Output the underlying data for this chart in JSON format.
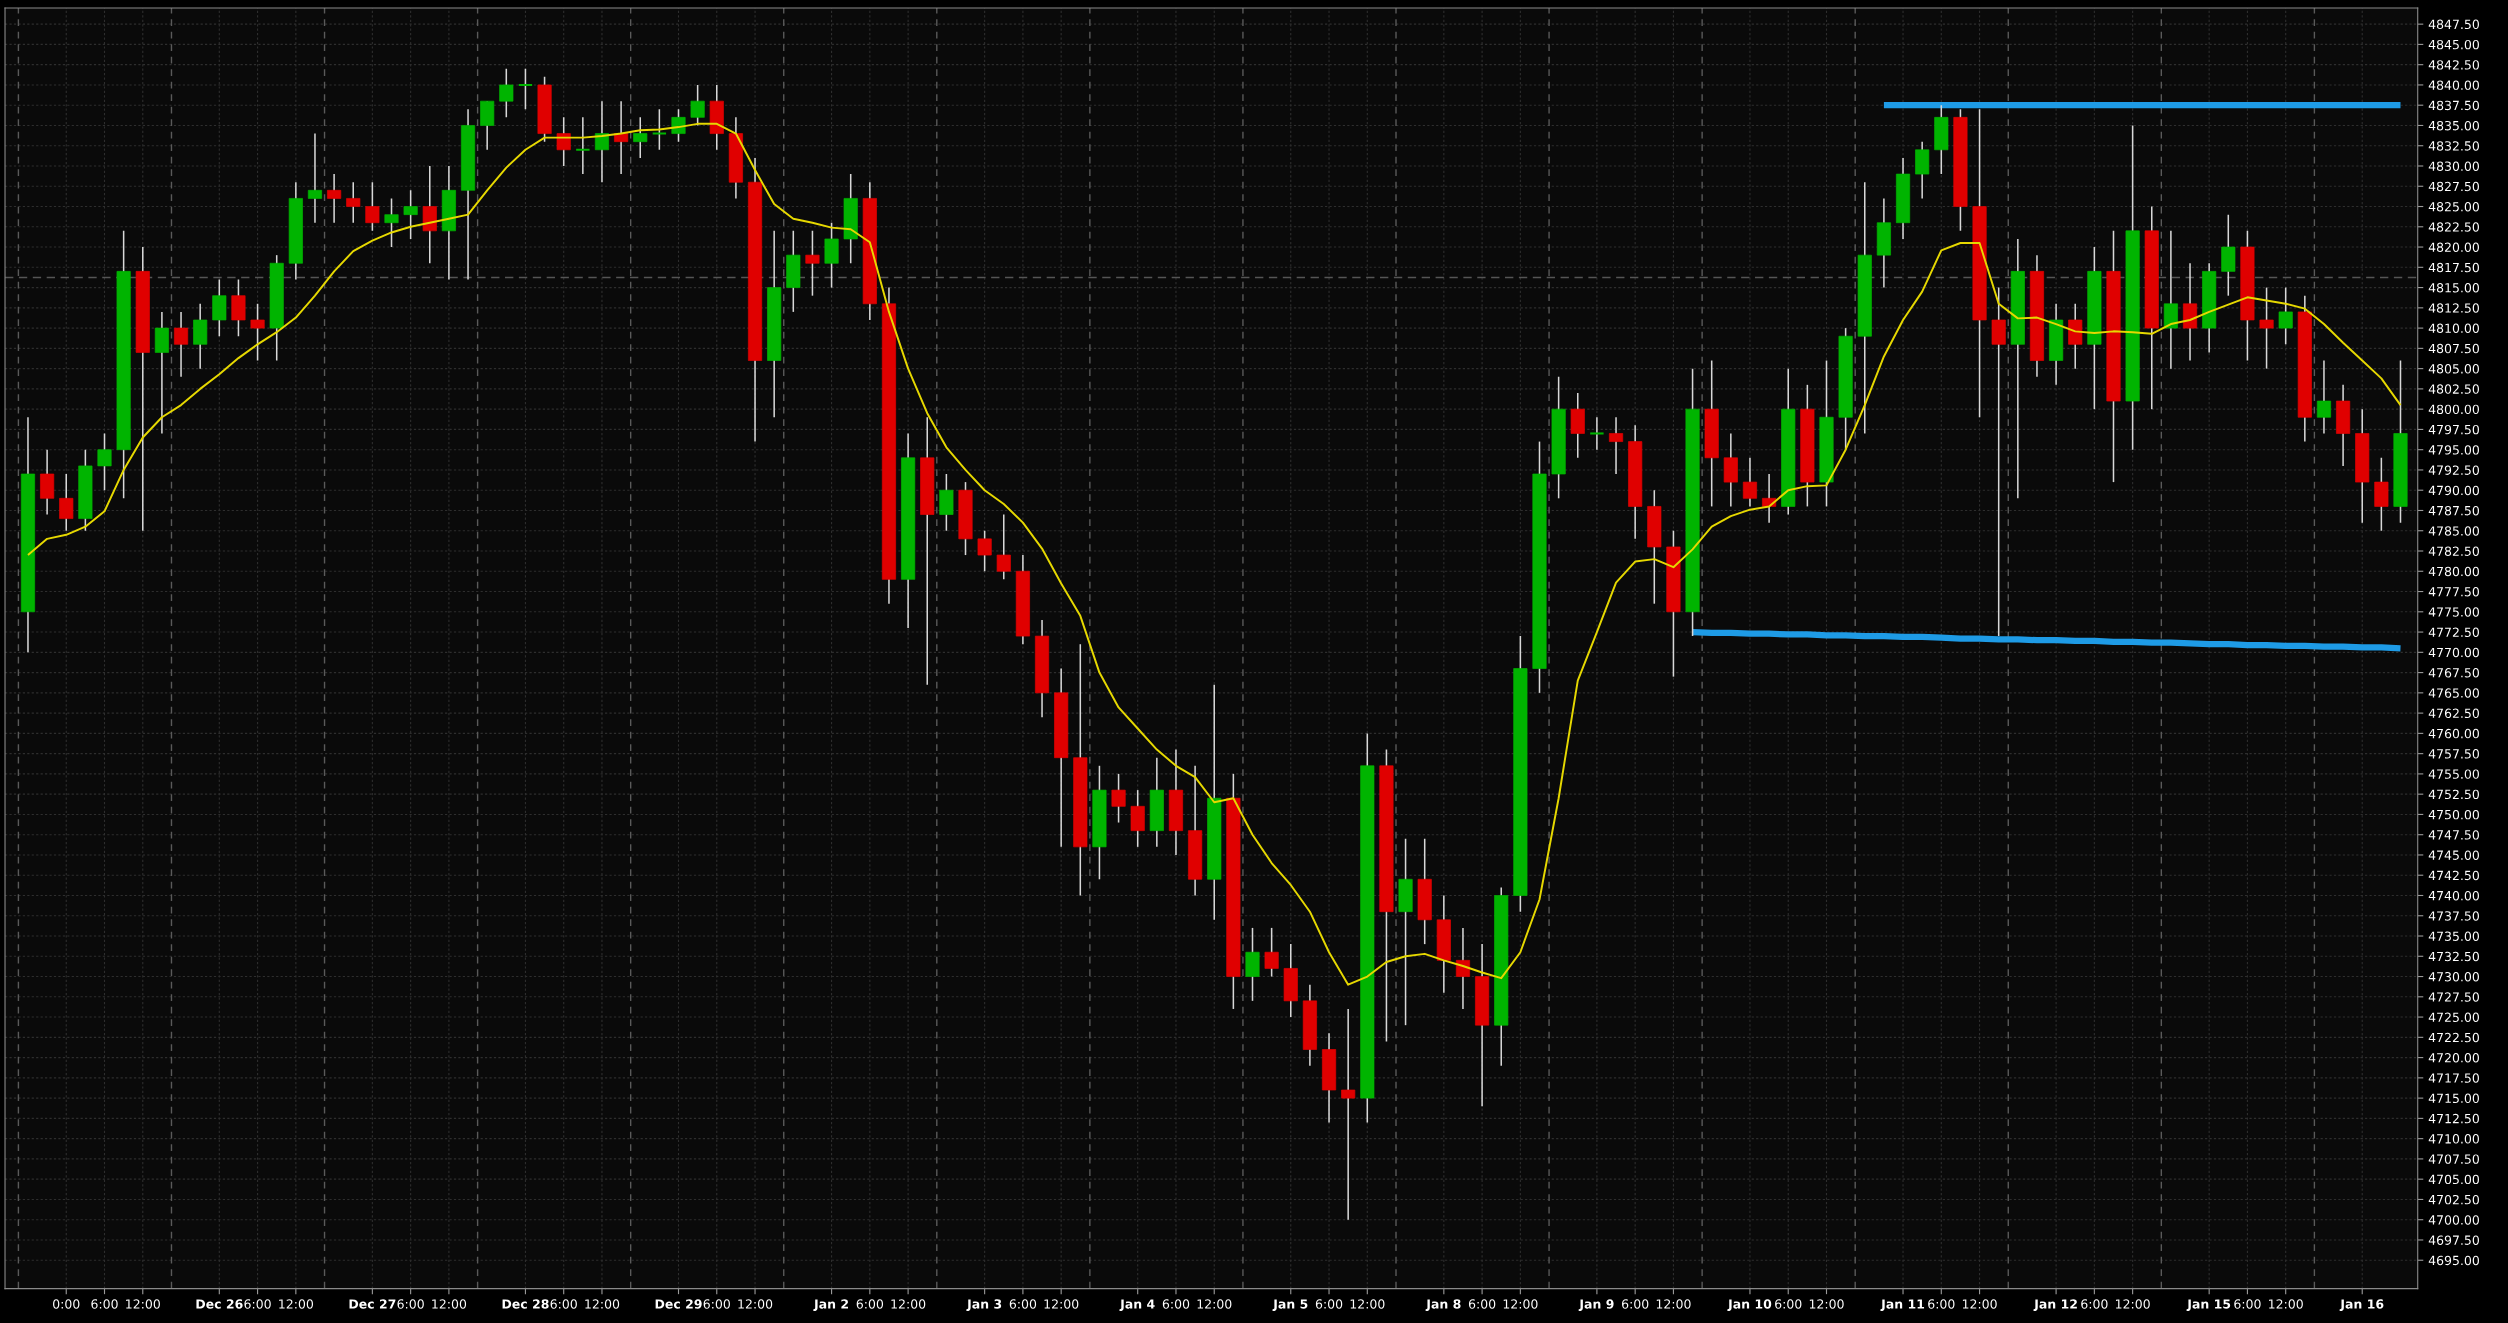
{
  "chart_data": {
    "type": "candlestick",
    "categories": [
      null,
      null,
      "0:00",
      null,
      "6:00",
      null,
      "12:00",
      null,
      null,
      null,
      "Dec 26",
      null,
      "6:00",
      null,
      "12:00",
      null,
      null,
      null,
      "Dec 27",
      null,
      "6:00",
      null,
      "12:00",
      null,
      null,
      null,
      "Dec 28",
      null,
      "6:00",
      null,
      "12:00",
      null,
      null,
      null,
      "Dec 29",
      null,
      "6:00",
      null,
      "12:00",
      null,
      null,
      null,
      "Jan 2",
      null,
      "6:00",
      null,
      "12:00",
      null,
      null,
      null,
      "Jan 3",
      null,
      "6:00",
      null,
      "12:00",
      null,
      null,
      null,
      "Jan 4",
      null,
      "6:00",
      null,
      "12:00",
      null,
      null,
      null,
      "Jan 5",
      null,
      "6:00",
      null,
      "12:00",
      null,
      null,
      null,
      "Jan 8",
      null,
      "6:00",
      null,
      "12:00",
      null,
      null,
      null,
      "Jan 9",
      null,
      "6:00",
      null,
      "12:00",
      null,
      null,
      null,
      "Jan 10",
      null,
      "6:00",
      null,
      "12:00",
      null,
      null,
      null,
      "Jan 11",
      null,
      "6:00",
      null,
      "12:00",
      null,
      null,
      null,
      "Jan 12",
      null,
      "6:00",
      null,
      "12:00",
      null,
      null,
      null,
      "Jan 15",
      null,
      "6:00",
      null,
      "12:00",
      null,
      null,
      null,
      "Jan 16",
      null,
      null
    ],
    "ohlc": [
      [
        4775,
        4799,
        4770,
        4792
      ],
      [
        4792,
        4795,
        4787,
        4789
      ],
      [
        4789,
        4792,
        4785,
        4786.5
      ],
      [
        4786.5,
        4795,
        4785,
        4793
      ],
      [
        4793,
        4797,
        4790,
        4795
      ],
      [
        4795,
        4822,
        4789,
        4817
      ],
      [
        4817,
        4820,
        4785,
        4807
      ],
      [
        4807,
        4812,
        4797,
        4810
      ],
      [
        4810,
        4812,
        4804,
        4808
      ],
      [
        4808,
        4813,
        4805,
        4811
      ],
      [
        4811,
        4816,
        4809,
        4814
      ],
      [
        4814,
        4816,
        4809,
        4811
      ],
      [
        4811,
        4813,
        4806,
        4810
      ],
      [
        4810,
        4819,
        4806,
        4818
      ],
      [
        4818,
        4828,
        4816,
        4826
      ],
      [
        4826,
        4834,
        4823,
        4827
      ],
      [
        4827,
        4829,
        4823,
        4826
      ],
      [
        4826,
        4828,
        4823,
        4825
      ],
      [
        4825,
        4828,
        4822,
        4823
      ],
      [
        4823,
        4826,
        4820,
        4824
      ],
      [
        4824,
        4827,
        4821,
        4825
      ],
      [
        4825,
        4830,
        4818,
        4822
      ],
      [
        4822,
        4830,
        4816,
        4827
      ],
      [
        4827,
        4837,
        4816,
        4835
      ],
      [
        4835,
        4838,
        4832,
        4838
      ],
      [
        4838,
        4842,
        4836,
        4840
      ],
      [
        4840,
        4842,
        4837,
        4840
      ],
      [
        4840,
        4841,
        4833,
        4834
      ],
      [
        4834,
        4836,
        4830,
        4832
      ],
      [
        4832,
        4836,
        4829,
        4832
      ],
      [
        4832,
        4838,
        4828,
        4834
      ],
      [
        4834,
        4838,
        4829,
        4833
      ],
      [
        4833,
        4836,
        4831,
        4834
      ],
      [
        4834,
        4837,
        4832,
        4834
      ],
      [
        4834,
        4837,
        4833,
        4836
      ],
      [
        4836,
        4840,
        4835,
        4838
      ],
      [
        4838,
        4840,
        4832,
        4834
      ],
      [
        4834,
        4836,
        4826,
        4828
      ],
      [
        4828,
        4831,
        4796,
        4806
      ],
      [
        4806,
        4822,
        4799,
        4815
      ],
      [
        4815,
        4822,
        4812,
        4819
      ],
      [
        4819,
        4822,
        4814,
        4818
      ],
      [
        4818,
        4823,
        4815,
        4821
      ],
      [
        4821,
        4829,
        4818,
        4826
      ],
      [
        4826,
        4828,
        4811,
        4813
      ],
      [
        4813,
        4815,
        4776,
        4779
      ],
      [
        4779,
        4797,
        4773,
        4794
      ],
      [
        4794,
        4799,
        4766,
        4787
      ],
      [
        4787,
        4792,
        4785,
        4790
      ],
      [
        4790,
        4791,
        4782,
        4784
      ],
      [
        4784,
        4785,
        4780,
        4782
      ],
      [
        4782,
        4787,
        4779,
        4780
      ],
      [
        4780,
        4782,
        4771,
        4772
      ],
      [
        4772,
        4774,
        4762,
        4765
      ],
      [
        4765,
        4768,
        4746,
        4757
      ],
      [
        4757,
        4771,
        4740,
        4746
      ],
      [
        4746,
        4756,
        4742,
        4753
      ],
      [
        4753,
        4755,
        4749,
        4751
      ],
      [
        4751,
        4753,
        4746,
        4748
      ],
      [
        4748,
        4757,
        4746,
        4753
      ],
      [
        4753,
        4758,
        4745,
        4748
      ],
      [
        4748,
        4756,
        4740,
        4742
      ],
      [
        4742,
        4766,
        4737,
        4752
      ],
      [
        4752,
        4755,
        4726,
        4730
      ],
      [
        4730,
        4736,
        4727,
        4733
      ],
      [
        4733,
        4736,
        4730,
        4731
      ],
      [
        4731,
        4734,
        4725,
        4727
      ],
      [
        4727,
        4729,
        4719,
        4721
      ],
      [
        4721,
        4723,
        4712,
        4716
      ],
      [
        4716,
        4726,
        4700,
        4715
      ],
      [
        4715,
        4760,
        4712,
        4756
      ],
      [
        4756,
        4758,
        4722,
        4738
      ],
      [
        4738,
        4747,
        4724,
        4742
      ],
      [
        4742,
        4747,
        4734,
        4737
      ],
      [
        4737,
        4740,
        4728,
        4732
      ],
      [
        4732,
        4736,
        4726,
        4730
      ],
      [
        4730,
        4734,
        4714,
        4724
      ],
      [
        4724,
        4741,
        4719,
        4740
      ],
      [
        4740,
        4772,
        4738,
        4768
      ],
      [
        4768,
        4796,
        4765,
        4792
      ],
      [
        4792,
        4804,
        4789,
        4800
      ],
      [
        4800,
        4802,
        4794,
        4797
      ],
      [
        4797,
        4799,
        4795,
        4797
      ],
      [
        4797,
        4799,
        4792,
        4796
      ],
      [
        4796,
        4798,
        4784,
        4788
      ],
      [
        4788,
        4790,
        4776,
        4783
      ],
      [
        4783,
        4785,
        4767,
        4775
      ],
      [
        4775,
        4805,
        4772,
        4800
      ],
      [
        4800,
        4806,
        4788,
        4794
      ],
      [
        4794,
        4797,
        4788,
        4791
      ],
      [
        4791,
        4794,
        4788,
        4789
      ],
      [
        4789,
        4792,
        4786,
        4788
      ],
      [
        4788,
        4805,
        4787,
        4800
      ],
      [
        4800,
        4803,
        4788,
        4791
      ],
      [
        4791,
        4806,
        4788,
        4799
      ],
      [
        4799,
        4810,
        4795,
        4809
      ],
      [
        4809,
        4828,
        4797,
        4819
      ],
      [
        4819,
        4826,
        4815,
        4823
      ],
      [
        4823,
        4831,
        4821,
        4829
      ],
      [
        4829,
        4833,
        4826,
        4832
      ],
      [
        4832,
        4837.5,
        4829,
        4836
      ],
      [
        4836,
        4837,
        4822,
        4825
      ],
      [
        4825,
        4837,
        4799,
        4811
      ],
      [
        4811,
        4815,
        4772,
        4808
      ],
      [
        4808,
        4821,
        4789,
        4817
      ],
      [
        4817,
        4819,
        4804,
        4806
      ],
      [
        4806,
        4813,
        4803,
        4811
      ],
      [
        4811,
        4813,
        4805,
        4808
      ],
      [
        4808,
        4820,
        4800,
        4817
      ],
      [
        4817,
        4822,
        4791,
        4801
      ],
      [
        4801,
        4835,
        4795,
        4822
      ],
      [
        4822,
        4825,
        4800,
        4810
      ],
      [
        4810,
        4822,
        4805,
        4813
      ],
      [
        4813,
        4818,
        4806,
        4810
      ],
      [
        4810,
        4818,
        4807,
        4817
      ],
      [
        4817,
        4824,
        4814,
        4820
      ],
      [
        4820,
        4822,
        4806,
        4811
      ],
      [
        4811,
        4815,
        4805,
        4810
      ],
      [
        4810,
        4815,
        4808,
        4812
      ],
      [
        4812,
        4814,
        4796,
        4799
      ],
      [
        4799,
        4806,
        4797,
        4801
      ],
      [
        4801,
        4803,
        4793,
        4797
      ],
      [
        4797,
        4800,
        4786,
        4791
      ],
      [
        4791,
        4794,
        4785,
        4788
      ],
      [
        4788,
        4806,
        4786,
        4797
      ]
    ],
    "series": [
      {
        "type": "line",
        "color": "#e6d800",
        "values": [
          4782,
          4784,
          4784.5,
          4785.5,
          4787.4,
          4792.5,
          4796.5,
          4799,
          4800.5,
          4802.5,
          4804.3,
          4806.3,
          4808,
          4809.5,
          4811.3,
          4814,
          4817,
          4819.5,
          4820.8,
          4821.8,
          4822.5,
          4823,
          4823.5,
          4824,
          4827,
          4829.8,
          4832,
          4833.5,
          4833.5,
          4833.5,
          4833.7,
          4834,
          4834.4,
          4834.5,
          4834.8,
          4835.2,
          4835.2,
          4834,
          4829.5,
          4825.3,
          4823.5,
          4823,
          4822.4,
          4822.2,
          4820.6,
          4812,
          4805,
          4799.5,
          4795.3,
          4792.5,
          4790,
          4788.3,
          4786,
          4782.8,
          4778.5,
          4774.5,
          4767.5,
          4763.2,
          4760.6,
          4758,
          4756,
          4754.6,
          4751.5,
          4752,
          4747.5,
          4744,
          4741.3,
          4738,
          4733,
          4729,
          4730,
          4731.8,
          4732.5,
          4732.8,
          4732,
          4731.3,
          4730.5,
          4729.8,
          4733,
          4739.5,
          4752,
          4766.5,
          4772.5,
          4778.6,
          4781.2,
          4781.5,
          4780.5,
          4782.7,
          4785.5,
          4786.8,
          4787.6,
          4788,
          4790,
          4790.5,
          4790.6,
          4795,
          4800.5,
          4806.5,
          4811,
          4814.5,
          4819.6,
          4820.5,
          4820.5,
          4813,
          4811.2,
          4811.3,
          4810.5,
          4809.6,
          4809.4,
          4809.6,
          4809.5,
          4809.3,
          4810.5,
          4811,
          4812,
          4812.9,
          4813.8,
          4813.4,
          4813,
          4812.4,
          4810.5,
          4808.2,
          4806,
          4803.8,
          4800.5
        ]
      },
      {
        "type": "line",
        "color": "#1e9be6",
        "values": [
          null,
          null,
          null,
          null,
          null,
          null,
          null,
          null,
          null,
          null,
          null,
          null,
          null,
          null,
          null,
          null,
          null,
          null,
          null,
          null,
          null,
          null,
          null,
          null,
          null,
          null,
          null,
          null,
          null,
          null,
          null,
          null,
          null,
          null,
          null,
          null,
          null,
          null,
          null,
          null,
          null,
          null,
          null,
          null,
          null,
          null,
          null,
          null,
          null,
          null,
          null,
          null,
          null,
          null,
          null,
          null,
          null,
          null,
          null,
          null,
          null,
          null,
          null,
          null,
          null,
          null,
          null,
          null,
          null,
          null,
          null,
          null,
          null,
          null,
          null,
          null,
          null,
          null,
          null,
          null,
          null,
          null,
          null,
          null,
          null,
          null,
          null,
          null,
          null,
          null,
          null,
          null,
          null,
          null,
          null,
          null,
          null,
          4837.5,
          4837.5,
          4837.5,
          4837.5,
          4837.5,
          4837.5,
          4837.5,
          4837.5,
          4837.5,
          4837.5,
          4837.5,
          4837.5,
          4837.5,
          4837.5,
          4837.5,
          4837.5,
          4837.5,
          4837.5,
          4837.5,
          4837.5,
          4837.5,
          4837.5,
          4837.5,
          4837.5,
          4837.5,
          4837.5,
          4837.5,
          4837.5
        ]
      },
      {
        "type": "line",
        "color": "#1e9be6",
        "values": [
          null,
          null,
          null,
          null,
          null,
          null,
          null,
          null,
          null,
          null,
          null,
          null,
          null,
          null,
          null,
          null,
          null,
          null,
          null,
          null,
          null,
          null,
          null,
          null,
          null,
          null,
          null,
          null,
          null,
          null,
          null,
          null,
          null,
          null,
          null,
          null,
          null,
          null,
          null,
          null,
          null,
          null,
          null,
          null,
          null,
          null,
          null,
          null,
          null,
          null,
          null,
          null,
          null,
          null,
          null,
          null,
          null,
          null,
          null,
          null,
          null,
          null,
          null,
          null,
          null,
          null,
          null,
          null,
          null,
          null,
          null,
          null,
          null,
          null,
          null,
          null,
          null,
          null,
          null,
          null,
          null,
          null,
          null,
          null,
          null,
          null,
          null,
          4772.5,
          4772.4,
          4772.4,
          4772.3,
          4772.3,
          4772.2,
          4772.2,
          4772.1,
          4772.1,
          4772.0,
          4772.0,
          4771.9,
          4771.9,
          4771.8,
          4771.7,
          4771.7,
          4771.6,
          4771.6,
          4771.5,
          4771.5,
          4771.4,
          4771.4,
          4771.3,
          4771.3,
          4771.2,
          4771.2,
          4771.1,
          4771.0,
          4771.0,
          4770.9,
          4770.9,
          4770.8,
          4770.8,
          4770.7,
          4770.7,
          4770.6,
          4770.6,
          4770.5
        ]
      }
    ],
    "ylim": [
      4691.5,
      4849.5
    ],
    "yticks": [
      {
        "value": 4695,
        "label": "4695.00"
      },
      {
        "value": 4697.5,
        "label": "4697.50"
      },
      {
        "value": 4700,
        "label": "4700.00"
      },
      {
        "value": 4702.5,
        "label": "4702.50"
      },
      {
        "value": 4705,
        "label": "4705.00"
      },
      {
        "value": 4707.5,
        "label": "4707.50"
      },
      {
        "value": 4710,
        "label": "4710.00"
      },
      {
        "value": 4712.5,
        "label": "4712.50"
      },
      {
        "value": 4715,
        "label": "4715.00"
      },
      {
        "value": 4717.5,
        "label": "4717.50"
      },
      {
        "value": 4720,
        "label": "4720.00"
      },
      {
        "value": 4722.5,
        "label": "4722.50"
      },
      {
        "value": 4725,
        "label": "4725.00"
      },
      {
        "value": 4727.5,
        "label": "4727.50"
      },
      {
        "value": 4730,
        "label": "4730.00"
      },
      {
        "value": 4732.5,
        "label": "4732.50"
      },
      {
        "value": 4735,
        "label": "4735.00"
      },
      {
        "value": 4737.5,
        "label": "4737.50"
      },
      {
        "value": 4740,
        "label": "4740.00"
      },
      {
        "value": 4742.5,
        "label": "4742.50"
      },
      {
        "value": 4745,
        "label": "4745.00"
      },
      {
        "value": 4747.5,
        "label": "4747.50"
      },
      {
        "value": 4750,
        "label": "4750.00"
      },
      {
        "value": 4752.5,
        "label": "4752.50"
      },
      {
        "value": 4755,
        "label": "4755.00"
      },
      {
        "value": 4757.5,
        "label": "4757.50"
      },
      {
        "value": 4760,
        "label": "4760.00"
      },
      {
        "value": 4762.5,
        "label": "4762.50"
      },
      {
        "value": 4765,
        "label": "4765.00"
      },
      {
        "value": 4767.5,
        "label": "4767.50"
      },
      {
        "value": 4770,
        "label": "4770.00"
      },
      {
        "value": 4772.5,
        "label": "4772.50"
      },
      {
        "value": 4775,
        "label": "4775.00"
      },
      {
        "value": 4777.5,
        "label": "4777.50"
      },
      {
        "value": 4780,
        "label": "4780.00"
      },
      {
        "value": 4782.5,
        "label": "4782.50"
      },
      {
        "value": 4785,
        "label": "4785.00"
      },
      {
        "value": 4787.5,
        "label": "4787.50"
      },
      {
        "value": 4790,
        "label": "4790.00"
      },
      {
        "value": 4792.5,
        "label": "4792.50"
      },
      {
        "value": 4795,
        "label": "4795.00"
      },
      {
        "value": 4797.5,
        "label": "4797.50"
      },
      {
        "value": 4800,
        "label": "4800.00"
      },
      {
        "value": 4802.5,
        "label": "4802.50"
      },
      {
        "value": 4805,
        "label": "4805.00"
      },
      {
        "value": 4807.5,
        "label": "4807.50"
      },
      {
        "value": 4810,
        "label": "4810.00"
      },
      {
        "value": 4812.5,
        "label": "4812.50"
      },
      {
        "value": 4815,
        "label": "4815.00"
      },
      {
        "value": 4817.5,
        "label": "4817.50"
      },
      {
        "value": 4820,
        "label": "4820.00"
      },
      {
        "value": 4822.5,
        "label": "4822.50"
      },
      {
        "value": 4825,
        "label": "4825.00"
      },
      {
        "value": 4827.5,
        "label": "4827.50"
      },
      {
        "value": 4830,
        "label": "4830.00"
      },
      {
        "value": 4832.5,
        "label": "4832.50"
      },
      {
        "value": 4835,
        "label": "4835.00"
      },
      {
        "value": 4837.5,
        "label": "4837.50"
      },
      {
        "value": 4840,
        "label": "4840.00"
      },
      {
        "value": 4842.5,
        "label": "4842.50"
      },
      {
        "value": 4845,
        "label": "4845.00"
      },
      {
        "value": 4847.5,
        "label": "4847.50"
      }
    ],
    "ref_lines": [
      {
        "axis": "y",
        "value": 4816.25,
        "label": null,
        "color": "#555555",
        "line_style": "dashed"
      }
    ],
    "grid": true
  }
}
